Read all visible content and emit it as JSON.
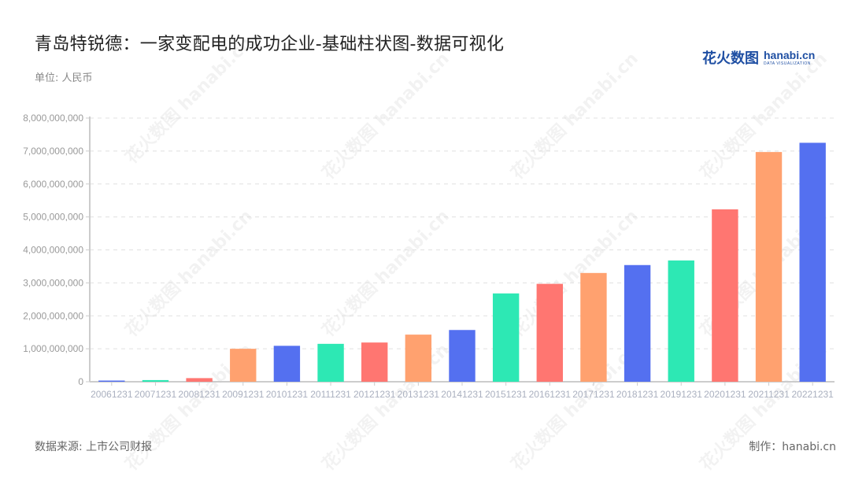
{
  "header": {
    "title": "青岛特锐德：一家变配电的成功企业-基础柱状图-数据可视化",
    "unit": "单位: 人民币"
  },
  "logo": {
    "cn": "花火数图",
    "en": "hanabi.cn",
    "en_sub": "DATA VISUALIZATION"
  },
  "footer": {
    "source": "数据来源: 上市公司财报",
    "credit": "制作：hanabi.cn"
  },
  "watermark_text": "花火数图 hanabi.cn",
  "colors": [
    "#5470f0",
    "#2de8b4",
    "#ff7671",
    "#ffa16f"
  ],
  "chart_data": {
    "type": "bar",
    "title": "青岛特锐德：一家变配电的成功企业-基础柱状图-数据可视化",
    "subtitle": "单位: 人民币",
    "xlabel": "",
    "ylabel": "",
    "ylim": [
      0,
      8000000000
    ],
    "yticks": [
      0,
      1000000000,
      2000000000,
      3000000000,
      4000000000,
      5000000000,
      6000000000,
      7000000000,
      8000000000
    ],
    "ytick_labels": [
      "0",
      "1,000,000,000",
      "2,000,000,000",
      "3,000,000,000",
      "4,000,000,000",
      "5,000,000,000",
      "6,000,000,000",
      "7,000,000,000",
      "8,000,000,000"
    ],
    "grid": "horizontal dashed",
    "legend": "none",
    "categories": [
      "20061231",
      "20071231",
      "20081231",
      "20091231",
      "20101231",
      "20111231",
      "20121231",
      "20131231",
      "20141231",
      "20151231",
      "20161231",
      "20171231",
      "20181231",
      "20191231",
      "20201231",
      "20211231",
      "20221231"
    ],
    "values": [
      30000000,
      50000000,
      110000000,
      1000000000,
      1090000000,
      1150000000,
      1190000000,
      1430000000,
      1570000000,
      2680000000,
      2970000000,
      3300000000,
      3540000000,
      3680000000,
      5230000000,
      6970000000,
      7250000000
    ],
    "bar_colors": [
      "#5470f0",
      "#2de8b4",
      "#ff7671",
      "#ffa16f",
      "#5470f0",
      "#2de8b4",
      "#ff7671",
      "#ffa16f",
      "#5470f0",
      "#2de8b4",
      "#ff7671",
      "#ffa16f",
      "#5470f0",
      "#2de8b4",
      "#ff7671",
      "#ffa16f",
      "#5470f0"
    ]
  }
}
